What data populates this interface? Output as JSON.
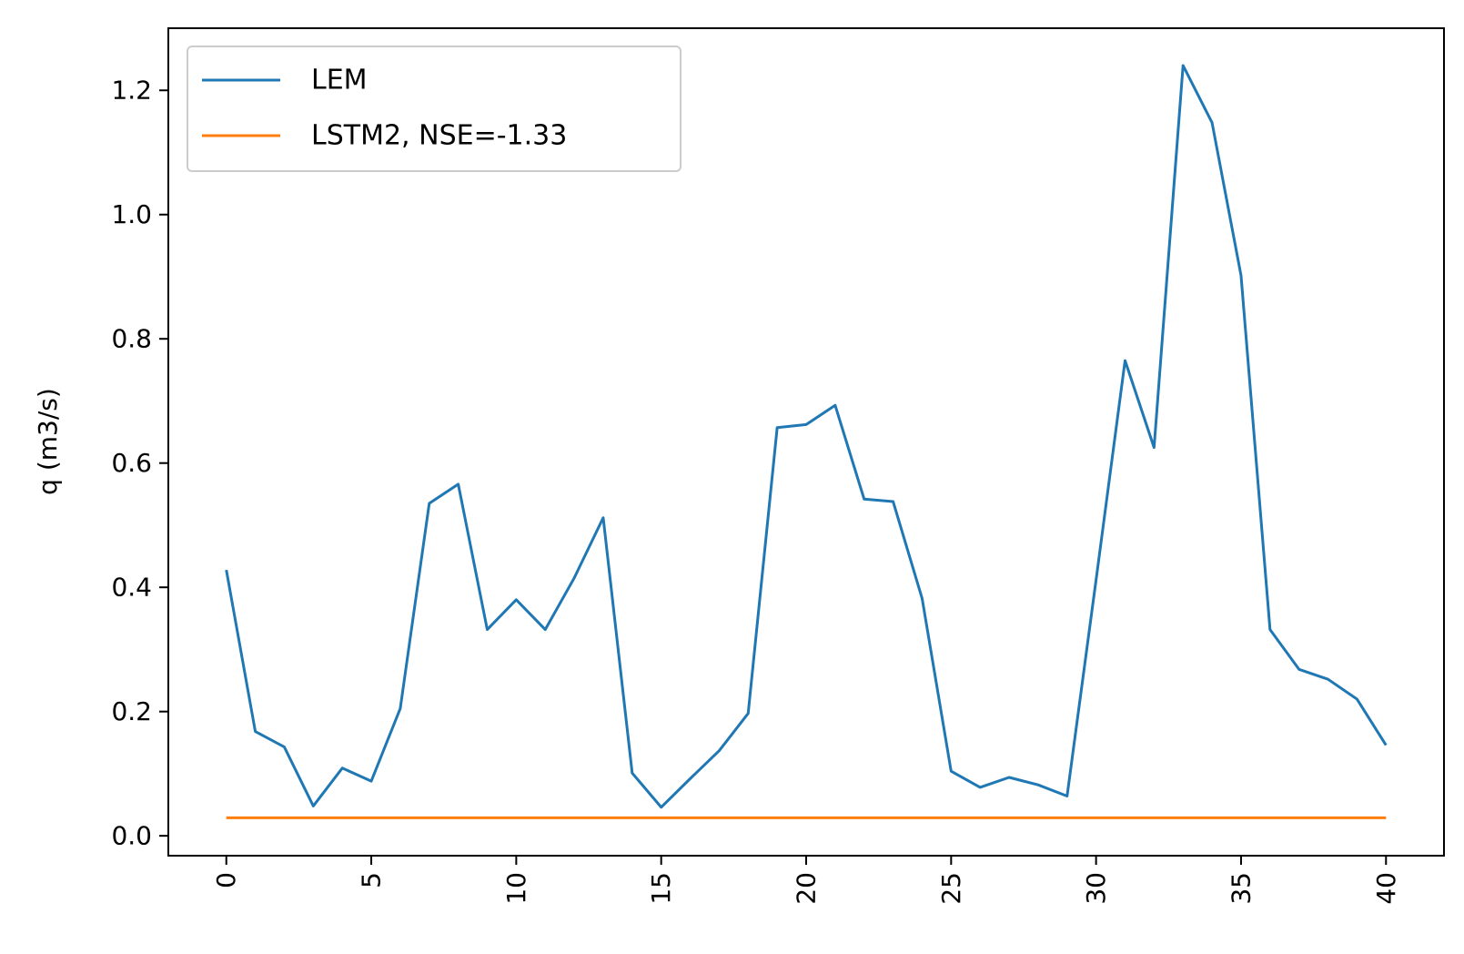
{
  "chart_data": {
    "type": "line",
    "title": "",
    "xlabel": "",
    "ylabel": "q (m3/s)",
    "xlim": [
      -2,
      42
    ],
    "ylim": [
      -0.032,
      1.3
    ],
    "x_ticks": [
      0,
      5,
      10,
      15,
      20,
      25,
      30,
      35,
      40
    ],
    "x_tick_labels": [
      "0",
      "5",
      "10",
      "15",
      "20",
      "25",
      "30",
      "35",
      "40"
    ],
    "y_ticks": [
      0.0,
      0.2,
      0.4,
      0.6,
      0.8,
      1.0,
      1.2
    ],
    "y_tick_labels": [
      "0.0",
      "0.2",
      "0.4",
      "0.6",
      "0.8",
      "1.0",
      "1.2"
    ],
    "grid": false,
    "legend_position": "top-left",
    "x": [
      0,
      1,
      2,
      3,
      4,
      5,
      6,
      7,
      8,
      9,
      10,
      11,
      12,
      13,
      14,
      15,
      16,
      17,
      18,
      19,
      20,
      21,
      22,
      23,
      24,
      25,
      26,
      27,
      28,
      29,
      30,
      31,
      32,
      33,
      34,
      35,
      36,
      37,
      38,
      39,
      40
    ],
    "series": [
      {
        "name": "LEM",
        "color": "#1f77b4",
        "values": [
          0.428,
          0.168,
          0.143,
          0.048,
          0.109,
          0.088,
          0.205,
          0.535,
          0.566,
          0.332,
          0.38,
          0.332,
          0.415,
          0.512,
          0.101,
          0.046,
          0.092,
          0.137,
          0.197,
          0.657,
          0.662,
          0.693,
          0.542,
          0.538,
          0.382,
          0.104,
          0.078,
          0.094,
          0.082,
          0.064,
          0.412,
          0.765,
          0.625,
          1.24,
          1.148,
          0.902,
          0.332,
          0.268,
          0.252,
          0.22,
          0.146
        ]
      },
      {
        "name": "LSTM2, NSE=-1.33",
        "color": "#ff7f0e",
        "values": [
          0.029,
          0.029,
          0.029,
          0.029,
          0.029,
          0.029,
          0.029,
          0.029,
          0.029,
          0.029,
          0.029,
          0.029,
          0.029,
          0.029,
          0.029,
          0.029,
          0.029,
          0.029,
          0.029,
          0.029,
          0.029,
          0.029,
          0.029,
          0.029,
          0.029,
          0.029,
          0.029,
          0.029,
          0.029,
          0.029,
          0.029,
          0.029,
          0.029,
          0.029,
          0.029,
          0.029,
          0.029,
          0.029,
          0.029,
          0.029,
          0.029
        ]
      }
    ]
  }
}
